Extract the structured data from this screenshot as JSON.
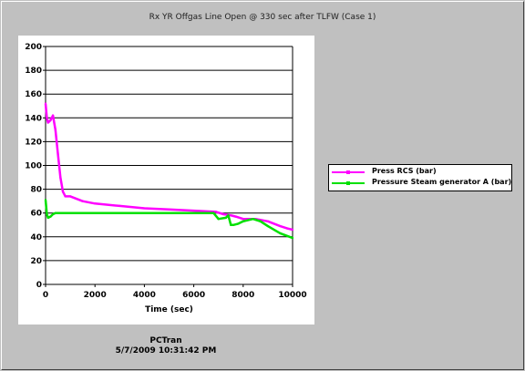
{
  "window": {
    "title": "Rx YR Offgas Line Open @ 330 sec after TLFW (Case 1)"
  },
  "footer": {
    "app": "PCTran",
    "timestamp": "5/7/2009 10:31:42 PM"
  },
  "colors": {
    "background": "#c0c0c0",
    "series_rcs": "#ff00ff",
    "series_sg": "#00e000"
  },
  "chart_data": {
    "type": "line",
    "title": "Rx YR Offgas Line Open @ 330 sec after TLFW (Case 1)",
    "xlabel": "Time (sec)",
    "ylabel": "",
    "xlim": [
      0,
      10000
    ],
    "ylim": [
      0,
      200
    ],
    "xticks": [
      0,
      2000,
      4000,
      6000,
      8000,
      10000
    ],
    "yticks": [
      0,
      20,
      40,
      60,
      80,
      100,
      120,
      140,
      160,
      180,
      200
    ],
    "grid": true,
    "legend_position": "right",
    "series": [
      {
        "name": "Press RCS (bar)",
        "color": "#ff00ff",
        "x": [
          0,
          50,
          100,
          150,
          200,
          300,
          400,
          500,
          600,
          700,
          800,
          1000,
          1500,
          2000,
          3000,
          4000,
          5000,
          6000,
          6900,
          7200,
          7500,
          7700,
          8000,
          8500,
          9000,
          9500,
          9800,
          10000
        ],
        "y": [
          152,
          140,
          136,
          137,
          138,
          142,
          130,
          110,
          90,
          78,
          74,
          74,
          70,
          68,
          66,
          64,
          63,
          62,
          61,
          59,
          58,
          57,
          55,
          55,
          53,
          49,
          47,
          46
        ]
      },
      {
        "name": "Pressure Steam generator A (bar)",
        "color": "#00e000",
        "x": [
          0,
          50,
          100,
          200,
          300,
          400,
          500,
          1000,
          2000,
          3000,
          4000,
          5000,
          6000,
          6800,
          7000,
          7300,
          7400,
          7500,
          7600,
          7800,
          8000,
          8400,
          8700,
          9000,
          9500,
          10000
        ],
        "y": [
          71,
          59,
          56,
          57,
          59,
          60,
          60,
          60,
          60,
          60,
          60,
          60,
          60,
          60,
          55,
          56,
          58,
          50,
          50,
          51,
          53,
          55,
          53,
          49,
          43,
          39
        ]
      }
    ]
  }
}
